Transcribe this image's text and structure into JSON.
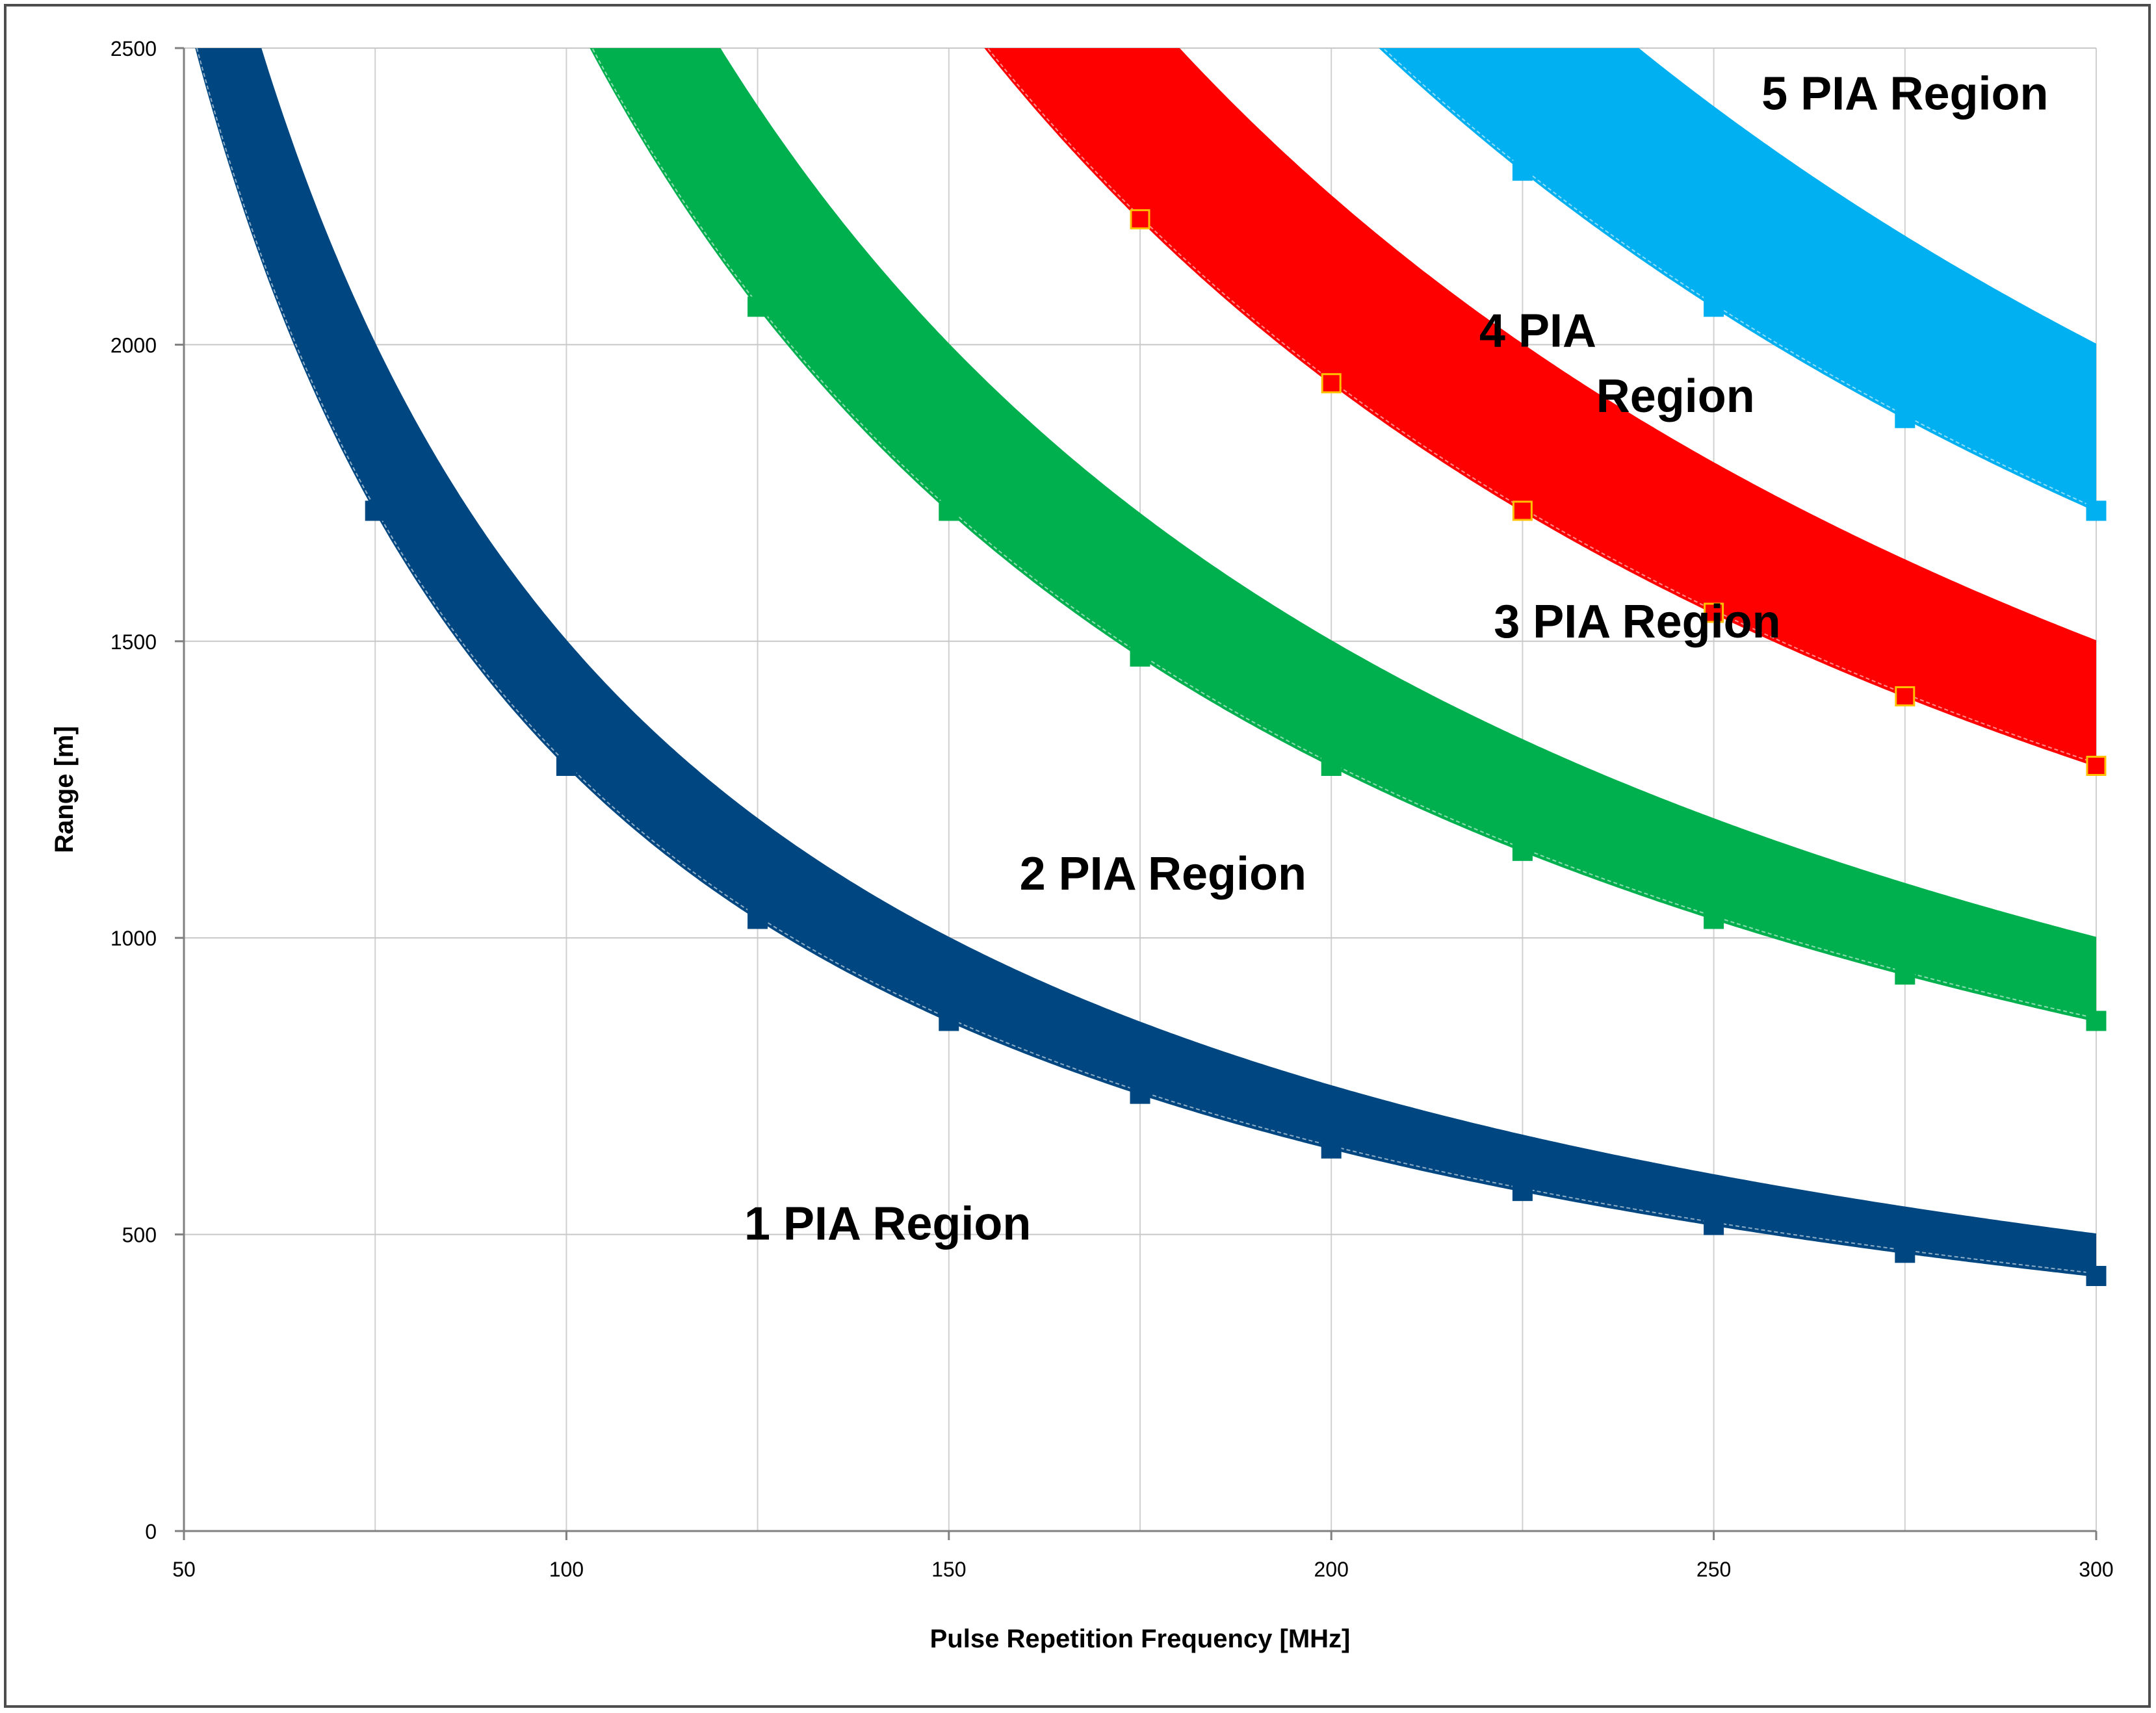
{
  "chart_data": {
    "type": "area",
    "xlabel": "Pulse Repetition Frequency [MHz]",
    "ylabel": "Range [m]",
    "xlim": [
      50,
      300
    ],
    "ylim": [
      0,
      2500
    ],
    "x_ticks": [
      "50",
      "100",
      "150",
      "200",
      "250",
      "300"
    ],
    "y_ticks": [
      "0",
      "500",
      "1000",
      "1500",
      "2000",
      "2500"
    ],
    "grid": true,
    "marker_x": [
      75,
      100,
      125,
      150,
      175,
      200,
      225,
      250,
      275,
      300
    ],
    "bands": [
      {
        "pia": 1,
        "color": "#004781",
        "upper_constant": 150000,
        "lower_constant": 129000
      },
      {
        "pia": 2,
        "color": "#00b04f",
        "upper_constant": 300000,
        "lower_constant": 258000
      },
      {
        "pia": 3,
        "color": "#ff0000",
        "marker_fill": "#ff0000",
        "marker_stroke": "#ffc000",
        "upper_constant": 450000,
        "lower_constant": 387000
      },
      {
        "pia": 4,
        "color": "#00b0f0",
        "upper_constant": 600000,
        "lower_constant": 516000
      }
    ],
    "annotations": [
      {
        "text": "1 PIA Region",
        "x": 142,
        "y": 520
      },
      {
        "text": "2 PIA Region",
        "x": 178,
        "y": 1110
      },
      {
        "text": "3 PIA Region",
        "x": 240,
        "y": 1535
      },
      {
        "text": "4 PIA",
        "x": 227,
        "y": 2025
      },
      {
        "text": "Region",
        "x": 245,
        "y": 1915
      },
      {
        "text": "5 PIA Region",
        "x": 275,
        "y": 2425
      }
    ]
  }
}
